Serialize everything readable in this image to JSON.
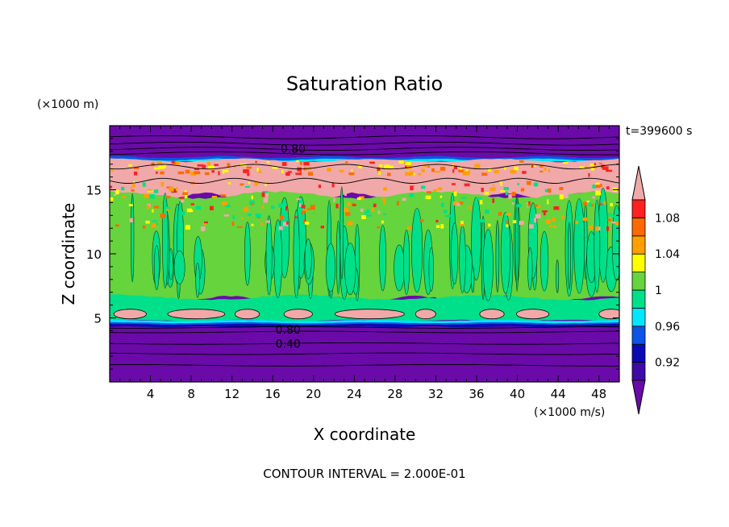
{
  "chart_data": {
    "type": "heatmap",
    "title": "Saturation Ratio",
    "xlabel": "X coordinate",
    "ylabel": "Z coordinate",
    "x_unit": "(×1000 m/s)",
    "y_unit": "(×1000 m)",
    "time_label": "t=399600 s",
    "footer": "CONTOUR INTERVAL = 2.000E-01",
    "xlim": [
      0,
      50
    ],
    "ylim": [
      0,
      20
    ],
    "xticks": [
      4,
      8,
      12,
      16,
      20,
      24,
      28,
      32,
      36,
      40,
      44,
      48
    ],
    "yticks": [
      5,
      10,
      15
    ],
    "colorbar": {
      "labels": [
        "1.08",
        "1.04",
        "1",
        "0.96",
        "0.92"
      ],
      "bands": [
        {
          "level": "<0.90",
          "color": "#6a0aa8"
        },
        {
          "level": "0.90",
          "color": "#3f0aa6"
        },
        {
          "level": "0.92",
          "color": "#0a0ab4"
        },
        {
          "level": "0.94",
          "color": "#0a55e6"
        },
        {
          "level": "0.96",
          "color": "#00e6ff"
        },
        {
          "level": "0.98",
          "color": "#00e08a"
        },
        {
          "level": "1.00",
          "color": "#66d43c"
        },
        {
          "level": "1.02",
          "color": "#ffff00"
        },
        {
          "level": "1.04",
          "color": "#ffa000"
        },
        {
          "level": "1.06",
          "color": "#ff6a00"
        },
        {
          "level": "1.08",
          "color": "#ff2020"
        },
        {
          "level": ">1.10",
          "color": "#f0a8a8"
        }
      ]
    },
    "contour_labels": [
      {
        "text": "0.80",
        "x": 18,
        "z": 18.2
      },
      {
        "text": "0.80",
        "x": 17.5,
        "z": 4.1
      },
      {
        "text": "0.40",
        "x": 17.5,
        "z": 3.0
      }
    ],
    "regions": [
      {
        "z_from": 17.5,
        "z_to": 20,
        "value": "<0.90"
      },
      {
        "z_from": 14.5,
        "z_to": 17.4,
        "value": ">1.10"
      },
      {
        "z_from": 6.5,
        "z_to": 14.5,
        "value": "1.00"
      },
      {
        "z_from": 4.8,
        "z_to": 6.5,
        "value": "0.98"
      },
      {
        "z_from": 0,
        "z_to": 4.6,
        "value": "<0.90"
      }
    ]
  }
}
